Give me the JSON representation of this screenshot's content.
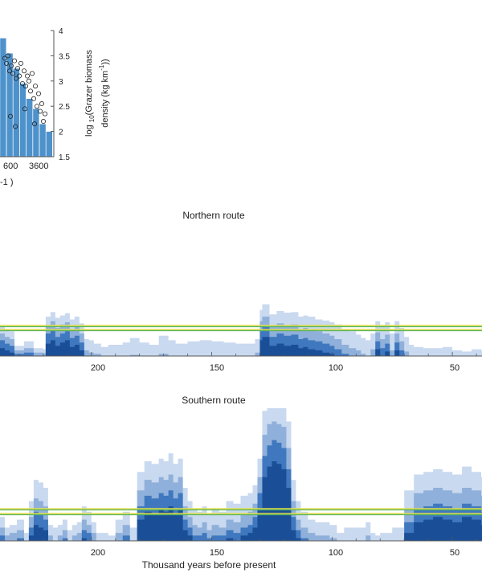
{
  "colors": {
    "band_light": "#c9d9ef",
    "band_mid": "#8fb0da",
    "band_dark": "#3f78bf",
    "band_darkest": "#1a4f98",
    "threshold_yellow": "#e3de4b",
    "threshold_green": "#57b357",
    "hist_fill": "#4e92cc",
    "axis": "#555555"
  },
  "chart_data": [
    {
      "type": "bar",
      "subtype": "histogram-with-scatter",
      "cropped": true,
      "x_tick_labels": [
        "600",
        "3600"
      ],
      "x_label_fragment": "-1 )",
      "y_right_label": "log 10 (Grazer biomass density (kg km -1 ))",
      "y_right_ticks": [
        "1.5",
        "2",
        "2.5",
        "3",
        "3.5",
        "4"
      ],
      "ylim": [
        1.5,
        4
      ],
      "bar_heights": [
        3.85,
        3.55,
        3.25,
        2.95,
        2.65,
        2.45,
        2.15,
        2.0
      ],
      "scatter_points": [
        {
          "x": 600,
          "y": 3.45
        },
        {
          "x": 700,
          "y": 3.35
        },
        {
          "x": 800,
          "y": 3.5
        },
        {
          "x": 900,
          "y": 3.2
        },
        {
          "x": 1000,
          "y": 3.3
        },
        {
          "x": 1100,
          "y": 3.15
        },
        {
          "x": 1200,
          "y": 3.4
        },
        {
          "x": 1300,
          "y": 3.05
        },
        {
          "x": 1400,
          "y": 3.25
        },
        {
          "x": 1500,
          "y": 3.1
        },
        {
          "x": 1600,
          "y": 3.35
        },
        {
          "x": 1700,
          "y": 2.95
        },
        {
          "x": 1800,
          "y": 3.2
        },
        {
          "x": 1900,
          "y": 2.9
        },
        {
          "x": 2000,
          "y": 3.1
        },
        {
          "x": 2100,
          "y": 3.0
        },
        {
          "x": 2200,
          "y": 2.8
        },
        {
          "x": 2300,
          "y": 3.15
        },
        {
          "x": 2400,
          "y": 2.65
        },
        {
          "x": 2500,
          "y": 2.9
        },
        {
          "x": 2600,
          "y": 2.5
        },
        {
          "x": 2700,
          "y": 2.75
        },
        {
          "x": 2800,
          "y": 2.4
        },
        {
          "x": 2900,
          "y": 2.55
        },
        {
          "x": 3000,
          "y": 2.2
        },
        {
          "x": 3100,
          "y": 2.35
        },
        {
          "x": 1250,
          "y": 2.1
        },
        {
          "x": 1850,
          "y": 2.45
        },
        {
          "x": 2450,
          "y": 2.15
        },
        {
          "x": 950,
          "y": 2.3
        }
      ]
    },
    {
      "type": "area",
      "title": "Northern route",
      "x_tick_labels": [
        "200",
        "150",
        "100",
        "50"
      ],
      "xlim": [
        240,
        30
      ],
      "x_reversed": true,
      "threshold_lines": 2,
      "note": "stacked percentile bands (relative heights, 0-1)",
      "x": [
        240,
        238,
        236,
        234,
        232,
        228,
        224,
        220,
        219,
        217,
        215,
        213,
        211,
        209,
        207,
        205,
        203,
        201,
        199,
        196,
        193,
        190,
        187,
        184,
        180,
        176,
        172,
        168,
        165,
        160,
        155,
        150,
        145,
        140,
        135,
        132,
        130,
        129,
        126,
        123,
        120,
        117,
        114,
        112,
        110,
        107,
        104,
        101,
        99,
        96,
        93,
        90,
        88,
        86,
        84,
        82,
        80,
        78,
        76,
        74,
        72,
        70,
        68,
        66,
        62,
        58,
        54,
        50,
        46,
        42,
        38,
        34,
        30
      ],
      "bands": {
        "light": [
          0.0,
          0.52,
          0.48,
          0.44,
          0.18,
          0.26,
          0.14,
          0.12,
          0.7,
          0.78,
          0.68,
          0.72,
          0.76,
          0.65,
          0.7,
          0.58,
          0.3,
          0.28,
          0.22,
          0.16,
          0.2,
          0.2,
          0.24,
          0.32,
          0.24,
          0.2,
          0.36,
          0.28,
          0.22,
          0.26,
          0.28,
          0.26,
          0.24,
          0.22,
          0.22,
          0.3,
          0.82,
          0.92,
          0.74,
          0.8,
          0.77,
          0.78,
          0.7,
          0.72,
          0.7,
          0.65,
          0.63,
          0.6,
          0.56,
          0.48,
          0.44,
          0.38,
          0.32,
          0.28,
          0.4,
          0.62,
          0.54,
          0.6,
          0.4,
          0.62,
          0.5,
          0.34,
          0.2,
          0.16,
          0.14,
          0.14,
          0.16,
          0.1,
          0.08,
          0.12,
          0.1,
          0.14,
          0.1
        ],
        "mid": [
          0.0,
          0.4,
          0.34,
          0.3,
          0.1,
          0.14,
          0.06,
          0.05,
          0.55,
          0.62,
          0.5,
          0.56,
          0.6,
          0.48,
          0.52,
          0.4,
          0.1,
          0.06,
          0.04,
          0.0,
          0.0,
          0.0,
          0.0,
          0.02,
          0.0,
          0.0,
          0.04,
          0.0,
          0.0,
          0.0,
          0.0,
          0.0,
          0.0,
          0.0,
          0.0,
          0.06,
          0.62,
          0.7,
          0.52,
          0.58,
          0.54,
          0.56,
          0.48,
          0.5,
          0.46,
          0.44,
          0.4,
          0.36,
          0.3,
          0.2,
          0.14,
          0.1,
          0.04,
          0.0,
          0.12,
          0.42,
          0.3,
          0.38,
          0.1,
          0.4,
          0.26,
          0.08,
          0.0,
          0.0,
          0.0,
          0.0,
          0.0,
          0.0,
          0.0,
          0.0,
          0.0,
          0.0,
          0.0
        ],
        "dark": [
          0.0,
          0.28,
          0.22,
          0.18,
          0.04,
          0.06,
          0.0,
          0.0,
          0.4,
          0.46,
          0.34,
          0.4,
          0.44,
          0.32,
          0.36,
          0.24,
          0.0,
          0.0,
          0.0,
          0.0,
          0.0,
          0.0,
          0.0,
          0.0,
          0.0,
          0.0,
          0.0,
          0.0,
          0.0,
          0.0,
          0.0,
          0.0,
          0.0,
          0.0,
          0.0,
          0.0,
          0.46,
          0.52,
          0.34,
          0.4,
          0.36,
          0.38,
          0.3,
          0.32,
          0.28,
          0.26,
          0.22,
          0.18,
          0.12,
          0.04,
          0.0,
          0.0,
          0.0,
          0.0,
          0.0,
          0.26,
          0.14,
          0.22,
          0.0,
          0.24,
          0.1,
          0.0,
          0.0,
          0.0,
          0.0,
          0.0,
          0.0,
          0.0,
          0.0,
          0.0,
          0.0,
          0.0,
          0.0
        ],
        "darkest": [
          0.0,
          0.14,
          0.1,
          0.06,
          0.0,
          0.0,
          0.0,
          0.0,
          0.22,
          0.28,
          0.18,
          0.24,
          0.28,
          0.16,
          0.2,
          0.1,
          0.0,
          0.0,
          0.0,
          0.0,
          0.0,
          0.0,
          0.0,
          0.0,
          0.0,
          0.0,
          0.0,
          0.0,
          0.0,
          0.0,
          0.0,
          0.0,
          0.0,
          0.0,
          0.0,
          0.0,
          0.28,
          0.34,
          0.18,
          0.22,
          0.18,
          0.2,
          0.14,
          0.16,
          0.12,
          0.1,
          0.06,
          0.04,
          0.0,
          0.0,
          0.0,
          0.0,
          0.0,
          0.0,
          0.0,
          0.12,
          0.0,
          0.08,
          0.0,
          0.1,
          0.0,
          0.0,
          0.0,
          0.0,
          0.0,
          0.0,
          0.0,
          0.0,
          0.0,
          0.0,
          0.0,
          0.0,
          0.0
        ]
      }
    },
    {
      "type": "area",
      "title": "Southern route",
      "xlabel": "Thousand years before present",
      "x_tick_labels": [
        "200",
        "150",
        "100",
        "50"
      ],
      "xlim": [
        240,
        30
      ],
      "x_reversed": true,
      "threshold_lines": 2,
      "note": "stacked percentile bands (relative heights, 0-1)",
      "x": [
        240,
        238,
        236,
        234,
        231,
        228,
        226,
        224,
        222,
        220,
        218,
        216,
        214,
        212,
        210,
        208,
        206,
        204,
        202,
        200,
        198,
        196,
        193,
        190,
        187,
        184,
        181,
        178,
        175,
        172,
        170,
        168,
        166,
        164,
        162,
        160,
        158,
        156,
        154,
        152,
        150,
        147,
        144,
        141,
        138,
        135,
        133,
        131,
        129,
        127,
        125,
        123,
        121,
        119,
        117,
        115,
        113,
        110,
        107,
        104,
        101,
        98,
        95,
        92,
        89,
        86,
        84,
        82,
        80,
        78,
        75,
        72,
        70,
        66,
        62,
        58,
        54,
        50,
        46,
        42,
        38,
        34,
        30
      ],
      "bands": {
        "light": [
          0.3,
          0.18,
          0.1,
          0.12,
          0.16,
          0.06,
          0.3,
          0.46,
          0.44,
          0.4,
          0.12,
          0.1,
          0.12,
          0.16,
          0.08,
          0.12,
          0.14,
          0.26,
          0.22,
          0.14,
          0.06,
          0.06,
          0.04,
          0.16,
          0.22,
          0.1,
          0.52,
          0.6,
          0.58,
          0.62,
          0.6,
          0.66,
          0.58,
          0.62,
          0.4,
          0.3,
          0.24,
          0.22,
          0.26,
          0.2,
          0.24,
          0.22,
          0.3,
          0.28,
          0.34,
          0.36,
          0.42,
          0.62,
          0.98,
          1.0,
          1.0,
          1.0,
          1.0,
          0.9,
          0.46,
          0.3,
          0.22,
          0.16,
          0.14,
          0.14,
          0.12,
          0.06,
          0.1,
          0.1,
          0.1,
          0.14,
          0.06,
          0.04,
          0.06,
          0.06,
          0.1,
          0.1,
          0.38,
          0.5,
          0.52,
          0.54,
          0.52,
          0.5,
          0.56,
          0.52,
          0.48,
          0.44,
          0.3
        ],
        "mid": [
          0.2,
          0.1,
          0.04,
          0.06,
          0.08,
          0.0,
          0.18,
          0.32,
          0.3,
          0.26,
          0.04,
          0.0,
          0.04,
          0.08,
          0.0,
          0.04,
          0.06,
          0.16,
          0.12,
          0.06,
          0.0,
          0.0,
          0.0,
          0.06,
          0.12,
          0.0,
          0.38,
          0.46,
          0.44,
          0.48,
          0.46,
          0.5,
          0.44,
          0.48,
          0.26,
          0.18,
          0.12,
          0.1,
          0.14,
          0.08,
          0.12,
          0.1,
          0.16,
          0.14,
          0.2,
          0.22,
          0.28,
          0.48,
          0.8,
          0.88,
          0.9,
          0.88,
          0.86,
          0.7,
          0.3,
          0.16,
          0.1,
          0.06,
          0.04,
          0.04,
          0.02,
          0.0,
          0.0,
          0.0,
          0.0,
          0.04,
          0.0,
          0.0,
          0.0,
          0.0,
          0.0,
          0.0,
          0.24,
          0.36,
          0.38,
          0.4,
          0.38,
          0.36,
          0.4,
          0.38,
          0.34,
          0.3,
          0.18
        ],
        "dark": [
          0.12,
          0.04,
          0.0,
          0.0,
          0.02,
          0.0,
          0.1,
          0.22,
          0.2,
          0.16,
          0.0,
          0.0,
          0.0,
          0.02,
          0.0,
          0.0,
          0.0,
          0.08,
          0.06,
          0.0,
          0.0,
          0.0,
          0.0,
          0.0,
          0.04,
          0.0,
          0.26,
          0.34,
          0.32,
          0.36,
          0.34,
          0.38,
          0.32,
          0.36,
          0.16,
          0.1,
          0.04,
          0.04,
          0.06,
          0.02,
          0.04,
          0.04,
          0.08,
          0.06,
          0.1,
          0.12,
          0.18,
          0.36,
          0.64,
          0.72,
          0.76,
          0.74,
          0.7,
          0.54,
          0.18,
          0.08,
          0.02,
          0.0,
          0.0,
          0.0,
          0.0,
          0.0,
          0.0,
          0.0,
          0.0,
          0.0,
          0.0,
          0.0,
          0.0,
          0.0,
          0.0,
          0.0,
          0.14,
          0.24,
          0.26,
          0.28,
          0.26,
          0.24,
          0.28,
          0.26,
          0.22,
          0.2,
          0.1
        ],
        "darkest": [
          0.06,
          0.0,
          0.0,
          0.0,
          0.0,
          0.0,
          0.04,
          0.12,
          0.1,
          0.08,
          0.0,
          0.0,
          0.0,
          0.0,
          0.0,
          0.0,
          0.0,
          0.02,
          0.0,
          0.0,
          0.0,
          0.0,
          0.0,
          0.0,
          0.0,
          0.0,
          0.16,
          0.22,
          0.2,
          0.24,
          0.22,
          0.26,
          0.2,
          0.24,
          0.08,
          0.04,
          0.0,
          0.0,
          0.0,
          0.0,
          0.0,
          0.0,
          0.02,
          0.0,
          0.04,
          0.06,
          0.1,
          0.24,
          0.48,
          0.56,
          0.6,
          0.58,
          0.54,
          0.4,
          0.08,
          0.02,
          0.0,
          0.0,
          0.0,
          0.0,
          0.0,
          0.0,
          0.0,
          0.0,
          0.0,
          0.0,
          0.0,
          0.0,
          0.0,
          0.0,
          0.0,
          0.0,
          0.06,
          0.14,
          0.16,
          0.18,
          0.16,
          0.14,
          0.18,
          0.16,
          0.12,
          0.1,
          0.04
        ]
      }
    }
  ]
}
